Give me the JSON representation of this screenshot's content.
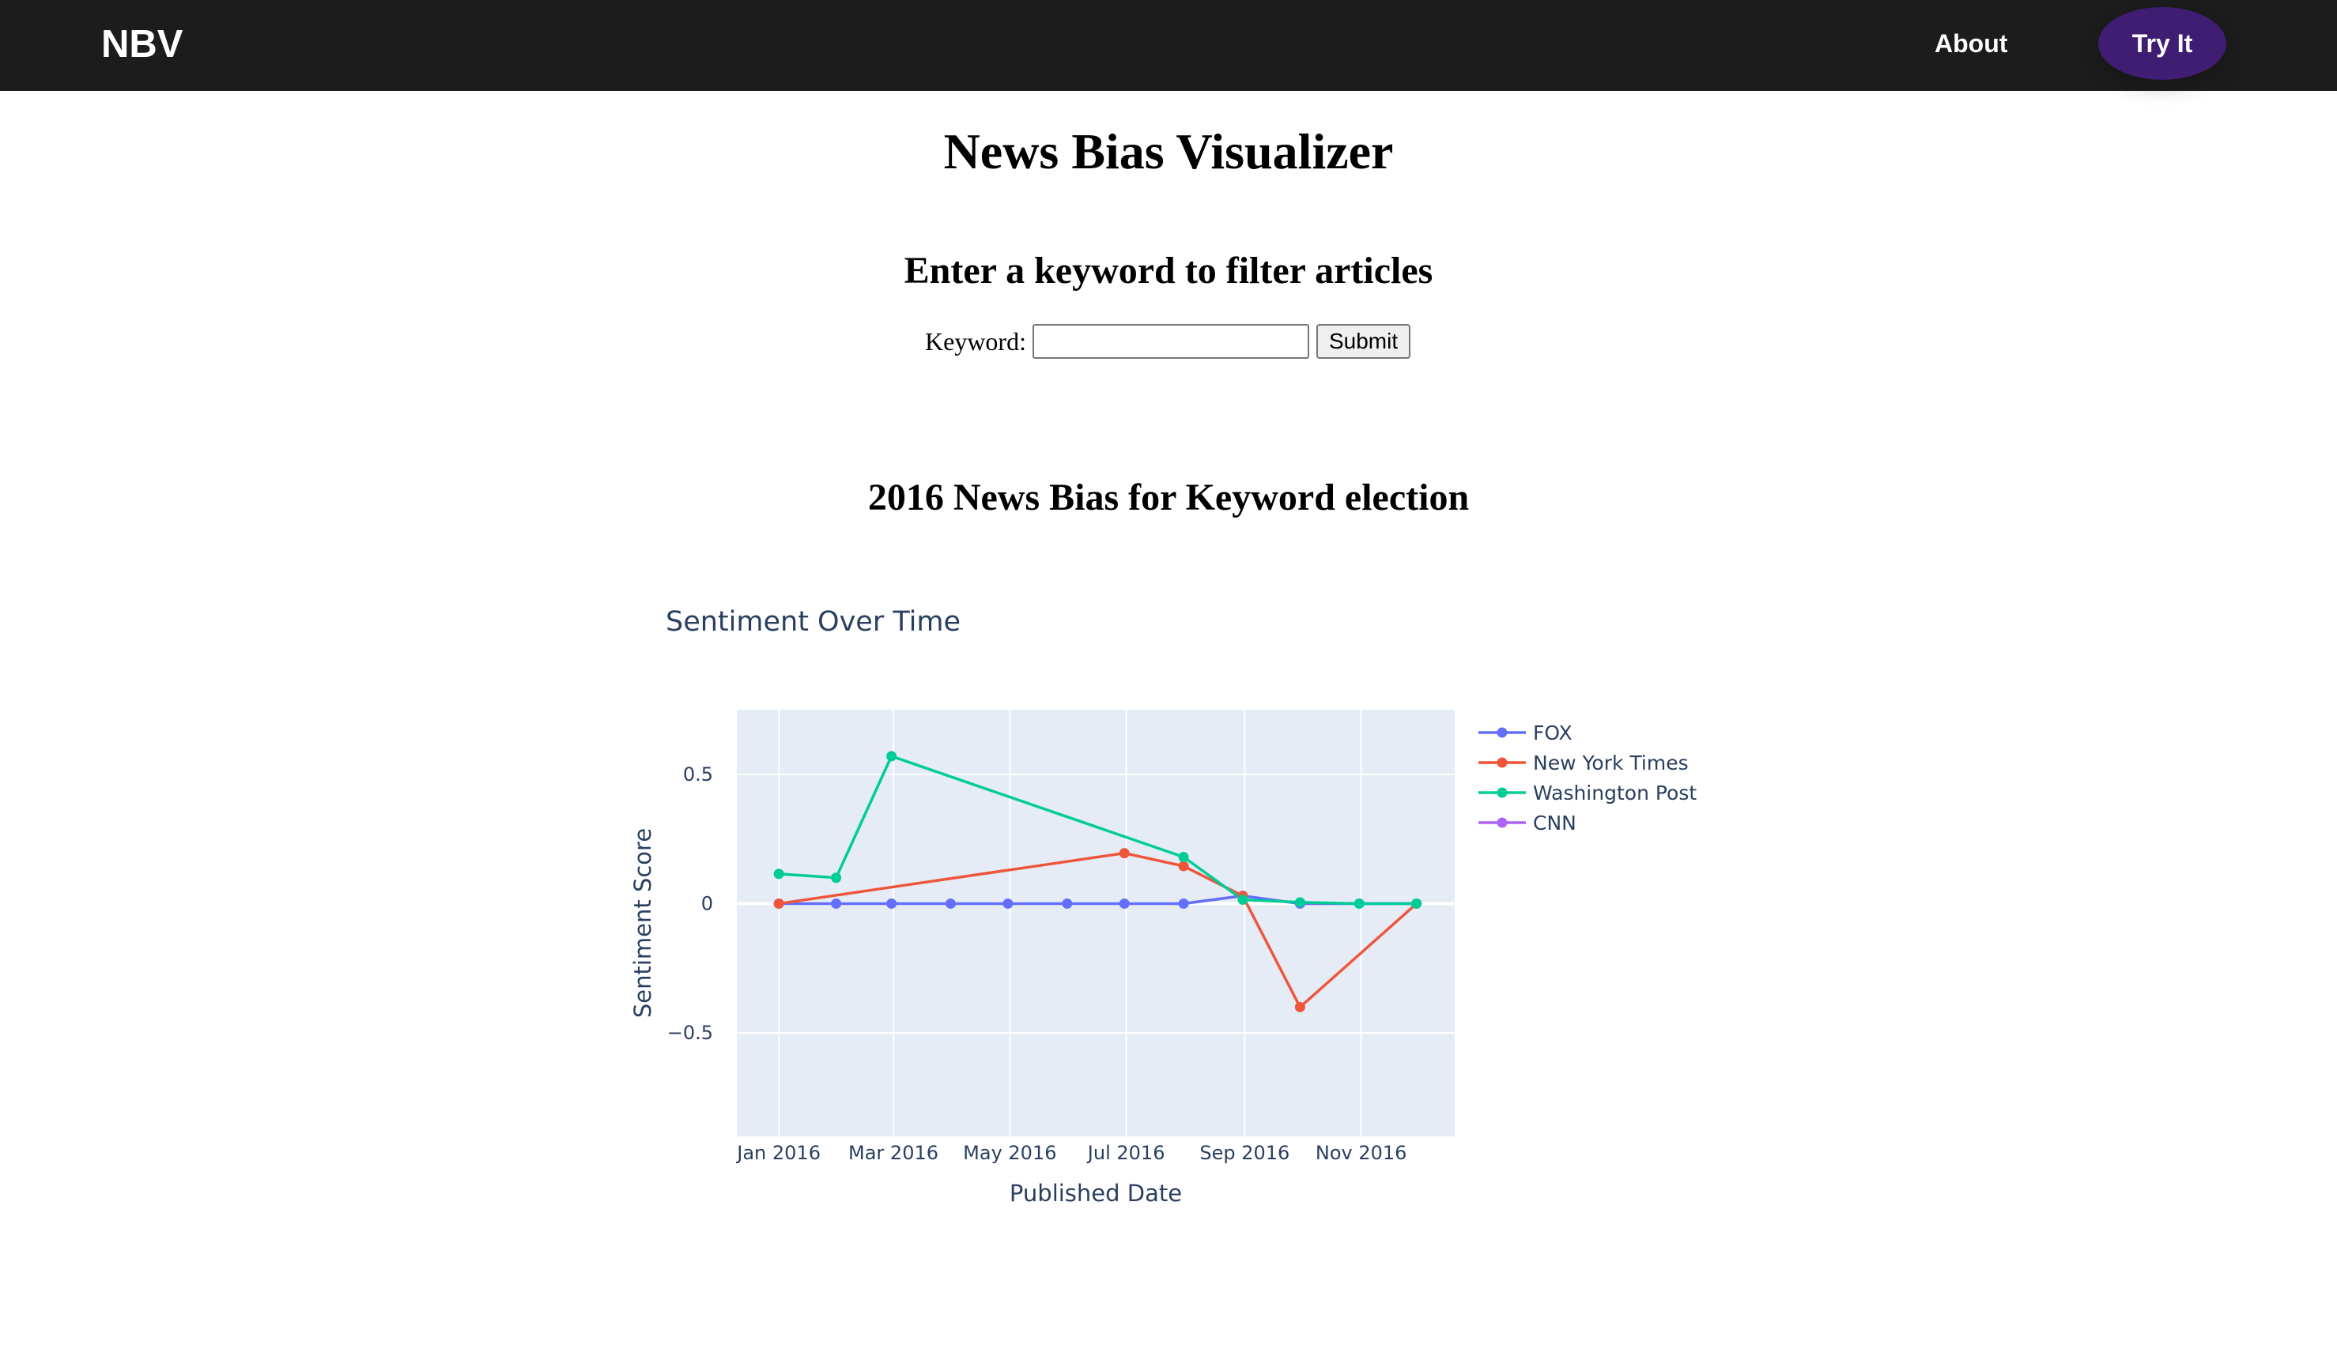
{
  "navbar": {
    "brand": "NBV",
    "about_label": "About",
    "try_label": "Try It",
    "bg_color": "#1c1c1c",
    "accent_color": "#3f1d72"
  },
  "page": {
    "title": "News Bias Visualizer",
    "form_title": "Enter a keyword to filter articles",
    "keyword_label": "Keyword:",
    "keyword_value": "",
    "submit_label": "Submit",
    "result_title": "2016 News Bias for Keyword election"
  },
  "chart_data": {
    "type": "line",
    "title": "Sentiment Over Time",
    "xlabel": "Published Date",
    "ylabel": "Sentiment Score",
    "x_range": [
      "2015-12-10",
      "2016-12-20"
    ],
    "ylim": [
      -0.9,
      0.75
    ],
    "x_ticks": [
      {
        "date": "2016-01-01",
        "label": "Jan 2016"
      },
      {
        "date": "2016-03-01",
        "label": "Mar 2016"
      },
      {
        "date": "2016-05-01",
        "label": "May 2016"
      },
      {
        "date": "2016-07-01",
        "label": "Jul 2016"
      },
      {
        "date": "2016-09-01",
        "label": "Sep 2016"
      },
      {
        "date": "2016-11-01",
        "label": "Nov 2016"
      }
    ],
    "y_ticks": [
      {
        "value": 0.5,
        "label": "0.5"
      },
      {
        "value": 0,
        "label": "0"
      },
      {
        "value": -0.5,
        "label": "−0.5"
      }
    ],
    "grid": true,
    "plot_bg": "#e5ecf6",
    "legend_position": "top-right",
    "series": [
      {
        "name": "FOX",
        "color": "#636efa",
        "points": [
          {
            "x": "2016-01-01",
            "y": 0.0
          },
          {
            "x": "2016-01-31",
            "y": 0.0
          },
          {
            "x": "2016-02-29",
            "y": 0.0
          },
          {
            "x": "2016-03-31",
            "y": 0.0
          },
          {
            "x": "2016-04-30",
            "y": 0.0
          },
          {
            "x": "2016-05-31",
            "y": 0.0
          },
          {
            "x": "2016-06-30",
            "y": 0.0
          },
          {
            "x": "2016-07-31",
            "y": 0.0
          },
          {
            "x": "2016-08-31",
            "y": 0.03
          },
          {
            "x": "2016-09-30",
            "y": 0.0
          },
          {
            "x": "2016-10-31",
            "y": 0.0
          },
          {
            "x": "2016-11-30",
            "y": 0.0
          }
        ]
      },
      {
        "name": "New York Times",
        "color": "#ef553b",
        "points": [
          {
            "x": "2016-01-01",
            "y": 0.0
          },
          {
            "x": "2016-06-30",
            "y": 0.195
          },
          {
            "x": "2016-07-31",
            "y": 0.145
          },
          {
            "x": "2016-08-31",
            "y": 0.03
          },
          {
            "x": "2016-09-30",
            "y": -0.4
          },
          {
            "x": "2016-11-30",
            "y": 0.0
          }
        ]
      },
      {
        "name": "Washington Post",
        "color": "#00cc96",
        "points": [
          {
            "x": "2016-01-01",
            "y": 0.115
          },
          {
            "x": "2016-01-31",
            "y": 0.1
          },
          {
            "x": "2016-02-29",
            "y": 0.57
          },
          {
            "x": "2016-07-31",
            "y": 0.18
          },
          {
            "x": "2016-08-31",
            "y": 0.015
          },
          {
            "x": "2016-09-30",
            "y": 0.005
          },
          {
            "x": "2016-10-31",
            "y": 0.0
          },
          {
            "x": "2016-11-30",
            "y": 0.0
          }
        ]
      },
      {
        "name": "CNN",
        "color": "#ab63fa",
        "points": []
      }
    ]
  }
}
